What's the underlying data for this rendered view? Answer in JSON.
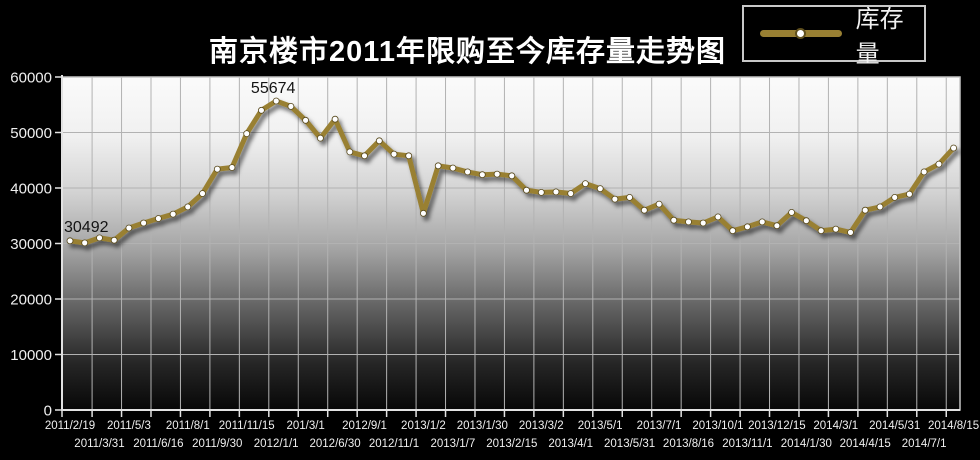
{
  "title": "南京楼市2011年限购至今库存量走势图",
  "legend": {
    "label": "库存量"
  },
  "colors": {
    "background": "#000000",
    "line": "#998033",
    "marker_fill": "#ffffff",
    "marker_stroke": "#57481c",
    "grid": "#b2b2b2",
    "axis": "#e2e2e2",
    "tick_text": "#efefef",
    "annotation_text": "#141414",
    "plot_gradient_top": "#fbfbfb",
    "plot_gradient_bottom": "#070707"
  },
  "chart_data": {
    "type": "line",
    "title": "南京楼市2011年限购至今库存量走势图",
    "legend_entries": [
      "库存量"
    ],
    "legend_position": "top-right",
    "grid": true,
    "ylim": [
      0,
      60000
    ],
    "y_ticks": [
      0,
      10000,
      20000,
      30000,
      40000,
      50000,
      60000
    ],
    "x_labels": [
      "2011/2/19",
      "2011/3/31",
      "2011/5/3",
      "2011/6/16",
      "2011/8/1",
      "2011/9/30",
      "2011/11/15",
      "2012/1/1",
      "201/3/1",
      "2012/6/30",
      "2012/9/1",
      "2012/11/1",
      "2013/1/2",
      "2013/1/7",
      "2013/1/30",
      "2013/2/15",
      "2013/3/2",
      "2013/4/1",
      "2013/5/1",
      "2013/5/31",
      "2013/7/1",
      "2013/8/16",
      "2013/10/1",
      "2013/11/1",
      "2013/12/15",
      "2014/1/30",
      "2014/3/1",
      "2014/4/15",
      "2014/5/31",
      "2014/7/1",
      "2014/8/15"
    ],
    "series": [
      {
        "name": "库存量",
        "values": [
          30492,
          30100,
          31000,
          30600,
          32800,
          33700,
          34500,
          35300,
          36600,
          39000,
          43400,
          43700,
          49800,
          54000,
          55674,
          54700,
          52200,
          49000,
          52400,
          46500,
          45800,
          48500,
          46100,
          45800,
          35440,
          44000,
          43600,
          42900,
          42400,
          42500,
          42200,
          39600,
          39200,
          39300,
          39000,
          40800,
          39900,
          38000,
          38300,
          36000,
          37100,
          34200,
          33900,
          33700,
          34800,
          32300,
          33000,
          33900,
          33200,
          35600,
          34100,
          32300,
          32600,
          32000,
          36000,
          36600,
          38300,
          38900,
          42900,
          44300,
          47200
        ]
      }
    ],
    "annotations": [
      {
        "text": "30492",
        "point_index": 0,
        "anchor": "start"
      },
      {
        "text": "55674",
        "point_index": 14,
        "anchor": "middle"
      }
    ]
  }
}
